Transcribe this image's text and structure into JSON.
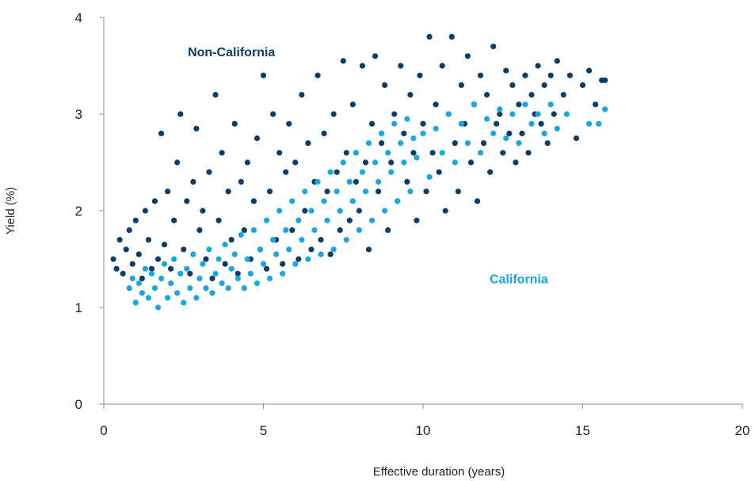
{
  "chart_data": {
    "type": "scatter",
    "xlabel": "Effective duration (years)",
    "ylabel": "Yield (%)",
    "xlim": [
      0,
      20
    ],
    "ylim": [
      0,
      4
    ],
    "xticks": [
      "0",
      "5",
      "10",
      "15",
      "20"
    ],
    "yticks": [
      "0",
      "1",
      "2",
      "3",
      "4"
    ],
    "grid": false,
    "colors": {
      "non_california": "#0d3d66",
      "california": "#1aa6e0"
    },
    "series": [
      {
        "name": "Non-California",
        "color": "#0d3d66",
        "points": [
          [
            0.3,
            1.5
          ],
          [
            0.4,
            1.4
          ],
          [
            0.5,
            1.7
          ],
          [
            0.6,
            1.35
          ],
          [
            0.7,
            1.6
          ],
          [
            0.8,
            1.8
          ],
          [
            0.9,
            1.45
          ],
          [
            1.0,
            1.9
          ],
          [
            1.1,
            1.55
          ],
          [
            1.2,
            1.3
          ],
          [
            1.3,
            2.0
          ],
          [
            1.4,
            1.7
          ],
          [
            1.5,
            1.4
          ],
          [
            1.6,
            2.1
          ],
          [
            1.7,
            1.5
          ],
          [
            1.8,
            2.8
          ],
          [
            1.9,
            1.65
          ],
          [
            2.0,
            2.2
          ],
          [
            2.1,
            1.4
          ],
          [
            2.2,
            1.9
          ],
          [
            2.3,
            2.5
          ],
          [
            2.4,
            3.0
          ],
          [
            2.5,
            1.6
          ],
          [
            2.6,
            2.1
          ],
          [
            2.7,
            1.35
          ],
          [
            2.8,
            2.3
          ],
          [
            2.9,
            2.85
          ],
          [
            3.0,
            1.8
          ],
          [
            3.1,
            2.0
          ],
          [
            3.2,
            1.5
          ],
          [
            3.3,
            2.4
          ],
          [
            3.4,
            1.3
          ],
          [
            3.5,
            3.2
          ],
          [
            3.6,
            1.9
          ],
          [
            3.7,
            2.6
          ],
          [
            3.8,
            1.45
          ],
          [
            3.9,
            2.2
          ],
          [
            4.0,
            1.7
          ],
          [
            4.1,
            2.9
          ],
          [
            4.2,
            1.35
          ],
          [
            4.3,
            2.3
          ],
          [
            4.4,
            1.8
          ],
          [
            4.5,
            2.5
          ],
          [
            4.6,
            1.5
          ],
          [
            4.7,
            2.1
          ],
          [
            4.8,
            2.75
          ],
          [
            4.9,
            1.6
          ],
          [
            5.0,
            3.4
          ],
          [
            5.1,
            1.4
          ],
          [
            5.2,
            2.2
          ],
          [
            5.3,
            3.0
          ],
          [
            5.4,
            1.7
          ],
          [
            5.5,
            2.6
          ],
          [
            5.6,
            1.45
          ],
          [
            5.7,
            2.4
          ],
          [
            5.8,
            2.9
          ],
          [
            5.9,
            1.8
          ],
          [
            6.0,
            2.5
          ],
          [
            6.1,
            1.5
          ],
          [
            6.2,
            3.2
          ],
          [
            6.3,
            2.0
          ],
          [
            6.4,
            2.7
          ],
          [
            6.5,
            1.6
          ],
          [
            6.6,
            2.3
          ],
          [
            6.7,
            3.4
          ],
          [
            6.8,
            1.7
          ],
          [
            6.9,
            2.8
          ],
          [
            7.0,
            2.2
          ],
          [
            7.1,
            1.55
          ],
          [
            7.2,
            3.0
          ],
          [
            7.3,
            2.4
          ],
          [
            7.4,
            1.8
          ],
          [
            7.5,
            3.55
          ],
          [
            7.6,
            2.6
          ],
          [
            7.7,
            1.9
          ],
          [
            7.8,
            3.1
          ],
          [
            7.9,
            2.3
          ],
          [
            8.0,
            2.0
          ],
          [
            8.1,
            3.5
          ],
          [
            8.2,
            2.5
          ],
          [
            8.3,
            1.6
          ],
          [
            8.4,
            2.9
          ],
          [
            8.5,
            3.6
          ],
          [
            8.6,
            2.2
          ],
          [
            8.7,
            2.7
          ],
          [
            8.8,
            3.3
          ],
          [
            8.9,
            1.8
          ],
          [
            9.0,
            2.5
          ],
          [
            9.1,
            3.0
          ],
          [
            9.2,
            2.1
          ],
          [
            9.3,
            3.5
          ],
          [
            9.4,
            2.8
          ],
          [
            9.5,
            2.3
          ],
          [
            9.6,
            3.2
          ],
          [
            9.7,
            2.6
          ],
          [
            9.8,
            1.9
          ],
          [
            9.9,
            3.4
          ],
          [
            10.0,
            2.9
          ],
          [
            10.1,
            2.2
          ],
          [
            10.2,
            3.8
          ],
          [
            10.3,
            2.6
          ],
          [
            10.4,
            3.1
          ],
          [
            10.5,
            2.4
          ],
          [
            10.6,
            3.5
          ],
          [
            10.7,
            2.0
          ],
          [
            10.8,
            3.0
          ],
          [
            10.9,
            3.8
          ],
          [
            11.0,
            2.7
          ],
          [
            11.1,
            2.2
          ],
          [
            11.2,
            3.3
          ],
          [
            11.3,
            2.9
          ],
          [
            11.4,
            3.6
          ],
          [
            11.5,
            2.5
          ],
          [
            11.6,
            3.1
          ],
          [
            11.7,
            2.1
          ],
          [
            11.8,
            3.4
          ],
          [
            11.9,
            2.7
          ],
          [
            12.0,
            3.2
          ],
          [
            12.1,
            2.4
          ],
          [
            12.2,
            3.7
          ],
          [
            12.3,
            2.9
          ],
          [
            12.4,
            3.0
          ],
          [
            12.5,
            2.6
          ],
          [
            12.6,
            3.45
          ],
          [
            12.7,
            2.8
          ],
          [
            12.8,
            3.3
          ],
          [
            12.9,
            2.5
          ],
          [
            13.0,
            3.1
          ],
          [
            13.1,
            2.8
          ],
          [
            13.2,
            3.4
          ],
          [
            13.3,
            2.6
          ],
          [
            13.4,
            3.2
          ],
          [
            13.5,
            3.0
          ],
          [
            13.6,
            3.5
          ],
          [
            13.7,
            2.9
          ],
          [
            13.8,
            3.3
          ],
          [
            13.9,
            2.7
          ],
          [
            14.0,
            3.4
          ],
          [
            14.1,
            3.0
          ],
          [
            14.2,
            3.55
          ],
          [
            14.4,
            3.2
          ],
          [
            14.6,
            3.4
          ],
          [
            14.8,
            2.75
          ],
          [
            15.0,
            3.3
          ],
          [
            15.2,
            3.45
          ],
          [
            15.4,
            3.1
          ],
          [
            15.6,
            3.35
          ],
          [
            15.7,
            3.35
          ]
        ]
      },
      {
        "name": "California",
        "color": "#1aa6e0",
        "points": [
          [
            0.8,
            1.2
          ],
          [
            0.9,
            1.3
          ],
          [
            1.0,
            1.05
          ],
          [
            1.1,
            1.25
          ],
          [
            1.2,
            1.15
          ],
          [
            1.3,
            1.4
          ],
          [
            1.4,
            1.1
          ],
          [
            1.5,
            1.35
          ],
          [
            1.6,
            1.2
          ],
          [
            1.7,
            1.0
          ],
          [
            1.8,
            1.3
          ],
          [
            1.9,
            1.45
          ],
          [
            2.0,
            1.1
          ],
          [
            2.1,
            1.25
          ],
          [
            2.2,
            1.5
          ],
          [
            2.3,
            1.15
          ],
          [
            2.4,
            1.35
          ],
          [
            2.5,
            1.05
          ],
          [
            2.6,
            1.4
          ],
          [
            2.7,
            1.2
          ],
          [
            2.8,
            1.55
          ],
          [
            2.9,
            1.1
          ],
          [
            3.0,
            1.3
          ],
          [
            3.1,
            1.45
          ],
          [
            3.2,
            1.2
          ],
          [
            3.3,
            1.6
          ],
          [
            3.4,
            1.15
          ],
          [
            3.5,
            1.35
          ],
          [
            3.6,
            1.5
          ],
          [
            3.7,
            1.25
          ],
          [
            3.8,
            1.65
          ],
          [
            3.9,
            1.2
          ],
          [
            4.0,
            1.4
          ],
          [
            4.1,
            1.55
          ],
          [
            4.2,
            1.3
          ],
          [
            4.3,
            1.75
          ],
          [
            4.4,
            1.2
          ],
          [
            4.5,
            1.5
          ],
          [
            4.6,
            1.35
          ],
          [
            4.7,
            1.8
          ],
          [
            4.8,
            1.25
          ],
          [
            4.9,
            1.6
          ],
          [
            5.0,
            1.45
          ],
          [
            5.1,
            1.9
          ],
          [
            5.2,
            1.3
          ],
          [
            5.3,
            1.7
          ],
          [
            5.4,
            1.55
          ],
          [
            5.5,
            2.0
          ],
          [
            5.6,
            1.35
          ],
          [
            5.7,
            1.8
          ],
          [
            5.8,
            1.6
          ],
          [
            5.9,
            2.1
          ],
          [
            6.0,
            1.45
          ],
          [
            6.1,
            1.9
          ],
          [
            6.2,
            1.7
          ],
          [
            6.3,
            2.2
          ],
          [
            6.4,
            1.5
          ],
          [
            6.5,
            2.0
          ],
          [
            6.6,
            1.8
          ],
          [
            6.7,
            2.3
          ],
          [
            6.8,
            1.55
          ],
          [
            6.9,
            2.1
          ],
          [
            7.0,
            1.9
          ],
          [
            7.1,
            2.4
          ],
          [
            7.2,
            1.6
          ],
          [
            7.3,
            2.2
          ],
          [
            7.4,
            2.0
          ],
          [
            7.5,
            2.5
          ],
          [
            7.6,
            1.7
          ],
          [
            7.7,
            2.3
          ],
          [
            7.8,
            2.1
          ],
          [
            7.9,
            2.6
          ],
          [
            8.0,
            1.8
          ],
          [
            8.1,
            2.4
          ],
          [
            8.2,
            2.2
          ],
          [
            8.3,
            2.7
          ],
          [
            8.4,
            1.9
          ],
          [
            8.5,
            2.5
          ],
          [
            8.6,
            2.3
          ],
          [
            8.7,
            2.8
          ],
          [
            8.8,
            2.0
          ],
          [
            8.9,
            2.6
          ],
          [
            9.0,
            2.4
          ],
          [
            9.1,
            2.9
          ],
          [
            9.2,
            2.1
          ],
          [
            9.3,
            2.7
          ],
          [
            9.4,
            2.5
          ],
          [
            9.5,
            2.95
          ],
          [
            9.6,
            2.2
          ],
          [
            9.7,
            2.75
          ],
          [
            9.8,
            2.55
          ],
          [
            10.0,
            2.8
          ],
          [
            10.2,
            2.35
          ],
          [
            10.4,
            2.85
          ],
          [
            10.6,
            2.6
          ],
          [
            10.8,
            3.0
          ],
          [
            11.0,
            2.5
          ],
          [
            11.2,
            2.9
          ],
          [
            11.4,
            2.7
          ],
          [
            11.6,
            3.1
          ],
          [
            11.8,
            2.6
          ],
          [
            12.0,
            2.95
          ],
          [
            12.2,
            2.8
          ],
          [
            12.4,
            3.05
          ],
          [
            12.6,
            2.75
          ],
          [
            12.8,
            3.0
          ],
          [
            13.0,
            2.7
          ],
          [
            13.2,
            3.1
          ],
          [
            13.4,
            2.9
          ],
          [
            13.6,
            3.0
          ],
          [
            13.8,
            2.8
          ],
          [
            14.0,
            3.1
          ],
          [
            14.2,
            2.85
          ],
          [
            14.5,
            3.0
          ],
          [
            15.2,
            2.9
          ],
          [
            15.5,
            2.9
          ],
          [
            15.7,
            3.05
          ]
        ]
      }
    ],
    "annotations": [
      {
        "text": "Non-California",
        "series": 0,
        "at": [
          4.0,
          3.6
        ]
      },
      {
        "text": "California",
        "series": 1,
        "at": [
          13.0,
          1.25
        ]
      }
    ]
  }
}
